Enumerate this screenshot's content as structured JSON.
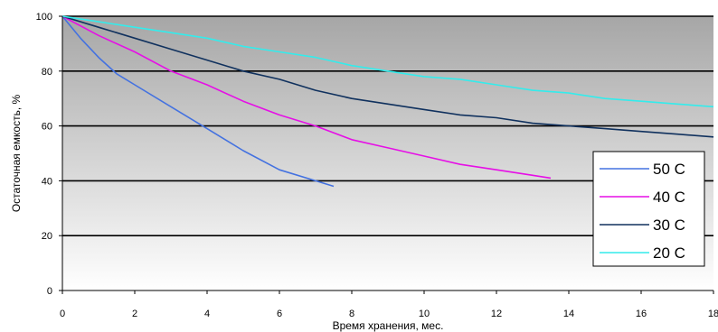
{
  "chart_data": {
    "type": "line",
    "title": "",
    "xlabel": "Время хранения, мес.",
    "ylabel": "Остаточная емкость, %",
    "xlim": [
      0,
      18
    ],
    "ylim": [
      0,
      100
    ],
    "x_ticks": [
      "0",
      "2",
      "4",
      "6",
      "8",
      "10",
      "12",
      "14",
      "16",
      "18"
    ],
    "y_ticks": [
      "0",
      "20",
      "40",
      "60",
      "80",
      "100"
    ],
    "grid": true,
    "legend_position": "bottom-right",
    "series": [
      {
        "name": "50 C",
        "color": "#4472e0",
        "x": [
          0,
          0.5,
          1,
          1.5,
          2,
          3,
          4,
          5,
          6,
          7,
          7.5
        ],
        "y": [
          100,
          92,
          85,
          79,
          75,
          67,
          59,
          51,
          44,
          40,
          38
        ]
      },
      {
        "name": "40 C",
        "color": "#e60fe6",
        "x": [
          0,
          1,
          2,
          3,
          4,
          5,
          6,
          7,
          8,
          9,
          10,
          11,
          12,
          13,
          13.5
        ],
        "y": [
          100,
          93,
          87,
          80,
          75,
          69,
          64,
          60,
          55,
          52,
          49,
          46,
          44,
          42,
          41
        ]
      },
      {
        "name": "30 C",
        "color": "#10315e",
        "x": [
          0,
          1,
          2,
          3,
          4,
          5,
          6,
          7,
          8,
          9,
          10,
          11,
          12,
          13,
          14,
          15,
          16,
          17,
          18
        ],
        "y": [
          100,
          96,
          92,
          88,
          84,
          80,
          77,
          73,
          70,
          68,
          66,
          64,
          63,
          61,
          60,
          59,
          58,
          57,
          56
        ]
      },
      {
        "name": "20 C",
        "color": "#33ecec",
        "x": [
          0,
          1,
          2,
          3,
          4,
          5,
          6,
          7,
          8,
          9,
          10,
          11,
          12,
          13,
          14,
          15,
          16,
          17,
          18
        ],
        "y": [
          100,
          98,
          96,
          94,
          92,
          89,
          87,
          85,
          82,
          80,
          78,
          77,
          75,
          73,
          72,
          70,
          69,
          68,
          67
        ]
      }
    ]
  }
}
